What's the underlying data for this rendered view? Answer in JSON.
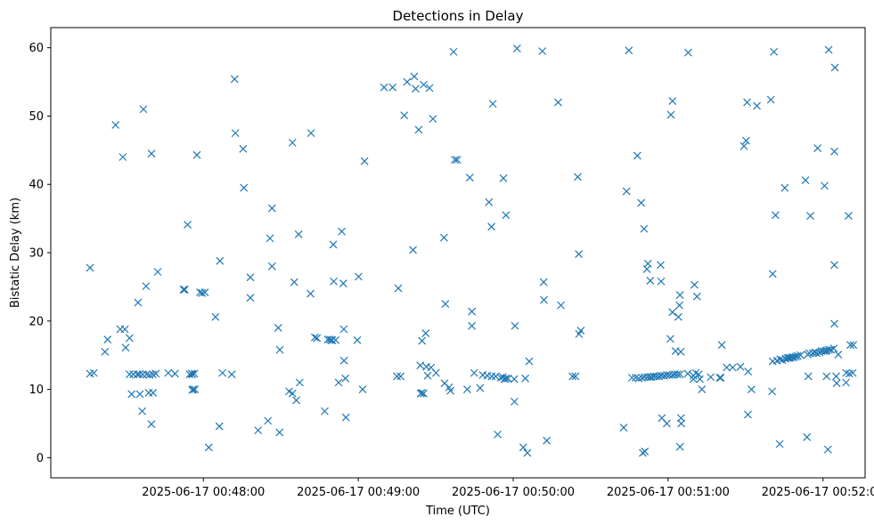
{
  "chart_data": {
    "type": "scatter",
    "title": "Detections in Delay",
    "xlabel": "Time (UTC)",
    "ylabel": "Bistatic Delay (km)",
    "marker": "x",
    "color": "#1f77b4",
    "x_tick_labels": [
      {
        "seconds": 0,
        "label": "2025-06-17 00:48:00"
      },
      {
        "seconds": 60,
        "label": "2025-06-17 00:49:00"
      },
      {
        "seconds": 120,
        "label": "2025-06-17 00:50:00"
      },
      {
        "seconds": 180,
        "label": "2025-06-17 00:51:00"
      },
      {
        "seconds": 240,
        "label": "2025-06-17 00:52:00"
      }
    ],
    "x_units": "seconds relative to 2025-06-17 00:48:00",
    "xlim": [
      -59.1,
      256.3
    ],
    "ylim": [
      -2.95,
      62.95
    ],
    "y_ticks": [
      0,
      10,
      20,
      30,
      40,
      50,
      60
    ],
    "points": [
      [
        -43.9,
        27.8
      ],
      [
        -43.9,
        12.3
      ],
      [
        -42.4,
        12.4
      ],
      [
        -38.1,
        15.5
      ],
      [
        -37.1,
        17.3
      ],
      [
        -34.0,
        48.7
      ],
      [
        -32.2,
        18.8
      ],
      [
        -31.2,
        44.0
      ],
      [
        -30.4,
        18.8
      ],
      [
        -30.1,
        16.1
      ],
      [
        -28.6,
        17.5
      ],
      [
        -28.6,
        12.2
      ],
      [
        -27.8,
        9.3
      ],
      [
        -27.1,
        12.2
      ],
      [
        -25.6,
        12.2
      ],
      [
        -25.3,
        22.7
      ],
      [
        -24.8,
        12.2
      ],
      [
        -24.6,
        9.3
      ],
      [
        -23.7,
        6.8
      ],
      [
        -23.5,
        12.2
      ],
      [
        -23.2,
        51.0
      ],
      [
        -22.2,
        25.1
      ],
      [
        -22.0,
        12.2
      ],
      [
        -21.2,
        9.5
      ],
      [
        -20.9,
        12.1
      ],
      [
        -20.1,
        44.5
      ],
      [
        -20.1,
        4.9
      ],
      [
        -19.6,
        12.2
      ],
      [
        -19.5,
        9.5
      ],
      [
        -18.4,
        12.3
      ],
      [
        -17.7,
        27.2
      ],
      [
        -13.6,
        12.4
      ],
      [
        -11.0,
        12.3
      ],
      [
        -7.7,
        24.6
      ],
      [
        -7.2,
        24.6
      ],
      [
        -6.1,
        34.1
      ],
      [
        -5.3,
        12.2
      ],
      [
        -4.5,
        12.3
      ],
      [
        -4.3,
        12.2
      ],
      [
        -4.3,
        9.9
      ],
      [
        -4.0,
        10.0
      ],
      [
        -3.5,
        12.3
      ],
      [
        -3.3,
        10.0
      ],
      [
        -2.5,
        44.3
      ],
      [
        -1.3,
        24.2
      ],
      [
        -0.5,
        24.1
      ],
      [
        0.6,
        24.2
      ],
      [
        2.1,
        1.5
      ],
      [
        4.7,
        20.6
      ],
      [
        6.2,
        4.6
      ],
      [
        6.4,
        28.8
      ],
      [
        7.4,
        12.4
      ],
      [
        11.0,
        12.2
      ],
      [
        12.1,
        55.4
      ],
      [
        12.4,
        47.5
      ],
      [
        15.4,
        45.2
      ],
      [
        15.7,
        39.5
      ],
      [
        18.2,
        26.4
      ],
      [
        18.2,
        23.4
      ],
      [
        21.2,
        4.0
      ],
      [
        25.0,
        5.4
      ],
      [
        25.8,
        32.1
      ],
      [
        26.6,
        36.5
      ],
      [
        26.6,
        28.0
      ],
      [
        29.0,
        19.0
      ],
      [
        29.5,
        3.7
      ],
      [
        29.6,
        15.8
      ],
      [
        33.2,
        9.7
      ],
      [
        34.5,
        46.1
      ],
      [
        34.5,
        9.4
      ],
      [
        35.2,
        25.7
      ],
      [
        36.0,
        8.4
      ],
      [
        36.9,
        32.7
      ],
      [
        37.3,
        11.0
      ],
      [
        41.5,
        24.0
      ],
      [
        41.7,
        47.5
      ],
      [
        43.2,
        17.6
      ],
      [
        44.0,
        17.5
      ],
      [
        47.0,
        6.8
      ],
      [
        48.2,
        17.3
      ],
      [
        49.0,
        17.3
      ],
      [
        49.6,
        17.2
      ],
      [
        49.9,
        17.2
      ],
      [
        50.3,
        31.2
      ],
      [
        50.5,
        25.8
      ],
      [
        51.2,
        17.2
      ],
      [
        52.4,
        11.0
      ],
      [
        53.6,
        33.1
      ],
      [
        54.2,
        25.5
      ],
      [
        54.4,
        18.8
      ],
      [
        54.5,
        14.2
      ],
      [
        55.0,
        11.6
      ],
      [
        55.2,
        5.9
      ],
      [
        59.6,
        17.2
      ],
      [
        60.1,
        26.5
      ],
      [
        61.7,
        10.0
      ],
      [
        62.4,
        43.4
      ],
      [
        70.0,
        54.2
      ],
      [
        73.3,
        54.2
      ],
      [
        75.0,
        11.9
      ],
      [
        75.5,
        24.8
      ],
      [
        76.4,
        11.9
      ],
      [
        77.8,
        50.1
      ],
      [
        78.9,
        55.0
      ],
      [
        81.2,
        30.4
      ],
      [
        81.7,
        55.8
      ],
      [
        82.2,
        54.0
      ],
      [
        83.4,
        48.0
      ],
      [
        84.0,
        13.5
      ],
      [
        84.2,
        9.4
      ],
      [
        84.6,
        9.5
      ],
      [
        84.7,
        17.1
      ],
      [
        85.3,
        9.4
      ],
      [
        85.3,
        54.6
      ],
      [
        86.1,
        18.2
      ],
      [
        86.4,
        13.3
      ],
      [
        86.9,
        12.0
      ],
      [
        87.6,
        54.1
      ],
      [
        88.2,
        13.2
      ],
      [
        88.9,
        49.6
      ],
      [
        90.1,
        12.4
      ],
      [
        93.2,
        32.2
      ],
      [
        93.4,
        10.9
      ],
      [
        93.7,
        22.5
      ],
      [
        95.2,
        10.3
      ],
      [
        95.7,
        9.8
      ],
      [
        96.9,
        59.4
      ],
      [
        97.4,
        43.6
      ],
      [
        98.3,
        43.6
      ],
      [
        102.2,
        10.0
      ],
      [
        103.2,
        41.0
      ],
      [
        104.0,
        19.3
      ],
      [
        104.0,
        21.4
      ],
      [
        104.9,
        12.4
      ],
      [
        107.2,
        10.2
      ],
      [
        108.2,
        12.1
      ],
      [
        110.0,
        12.0
      ],
      [
        110.6,
        37.4
      ],
      [
        111.6,
        33.8
      ],
      [
        111.7,
        11.9
      ],
      [
        112.1,
        51.8
      ],
      [
        113.2,
        11.9
      ],
      [
        114.0,
        3.4
      ],
      [
        115.2,
        11.7
      ],
      [
        116.0,
        11.8
      ],
      [
        116.2,
        40.9
      ],
      [
        116.6,
        11.5
      ],
      [
        117.2,
        11.6
      ],
      [
        117.2,
        35.5
      ],
      [
        118.0,
        11.6
      ],
      [
        120.4,
        11.5
      ],
      [
        120.5,
        8.2
      ],
      [
        120.7,
        19.3
      ],
      [
        121.5,
        59.9
      ],
      [
        123.9,
        1.5
      ],
      [
        124.7,
        11.6
      ],
      [
        125.5,
        0.7
      ],
      [
        126.2,
        14.1
      ],
      [
        131.3,
        59.5
      ],
      [
        131.8,
        25.7
      ],
      [
        131.9,
        23.1
      ],
      [
        133.0,
        2.5
      ],
      [
        137.4,
        52.0
      ],
      [
        138.5,
        22.3
      ],
      [
        143.0,
        11.9
      ],
      [
        144.1,
        11.9
      ],
      [
        145.0,
        41.1
      ],
      [
        145.4,
        29.8
      ],
      [
        145.5,
        18.1
      ],
      [
        146.2,
        18.6
      ],
      [
        162.8,
        4.4
      ],
      [
        163.9,
        39.0
      ],
      [
        164.8,
        59.6
      ],
      [
        166.0,
        11.7
      ],
      [
        167.4,
        11.7
      ],
      [
        168.1,
        44.2
      ],
      [
        168.6,
        11.6
      ],
      [
        169.6,
        37.3
      ],
      [
        169.9,
        11.7
      ],
      [
        170.2,
        0.7
      ],
      [
        170.7,
        33.5
      ],
      [
        170.9,
        11.8
      ],
      [
        171.0,
        0.9
      ],
      [
        171.8,
        27.6
      ],
      [
        172.0,
        11.8
      ],
      [
        172.2,
        28.4
      ],
      [
        172.9,
        11.8
      ],
      [
        173.1,
        25.9
      ],
      [
        173.6,
        11.8
      ],
      [
        174.5,
        11.9
      ],
      [
        175.5,
        11.9
      ],
      [
        176.5,
        11.9
      ],
      [
        177.1,
        28.2
      ],
      [
        177.3,
        25.8
      ],
      [
        177.4,
        12.0
      ],
      [
        177.6,
        5.8
      ],
      [
        178.5,
        12.0
      ],
      [
        179.5,
        12.1
      ],
      [
        179.5,
        5.0
      ],
      [
        180.5,
        12.1
      ],
      [
        180.9,
        17.4
      ],
      [
        181.1,
        50.2
      ],
      [
        181.7,
        52.2
      ],
      [
        181.7,
        12.1
      ],
      [
        181.7,
        21.3
      ],
      [
        182.6,
        12.2
      ],
      [
        182.9,
        15.6
      ],
      [
        183.6,
        12.2
      ],
      [
        184.0,
        20.6
      ],
      [
        184.4,
        22.3
      ],
      [
        184.6,
        1.6
      ],
      [
        184.6,
        23.8
      ],
      [
        184.6,
        12.2
      ],
      [
        184.9,
        15.5
      ],
      [
        185.0,
        5.8
      ],
      [
        185.1,
        5.0
      ],
      [
        187.6,
        12.3
      ],
      [
        187.8,
        59.3
      ],
      [
        189.8,
        12.0
      ],
      [
        189.8,
        11.5
      ],
      [
        190.2,
        25.3
      ],
      [
        190.7,
        12.4
      ],
      [
        191.2,
        23.6
      ],
      [
        191.8,
        12.2
      ],
      [
        192.3,
        11.5
      ],
      [
        193.1,
        10.0
      ],
      [
        196.5,
        11.8
      ],
      [
        200.0,
        11.7
      ],
      [
        200.4,
        11.7
      ],
      [
        200.8,
        16.5
      ],
      [
        202.7,
        13.2
      ],
      [
        205.0,
        13.2
      ],
      [
        208.0,
        13.3
      ],
      [
        209.4,
        45.6
      ],
      [
        210.2,
        46.4
      ],
      [
        210.6,
        52.0
      ],
      [
        210.9,
        6.3
      ],
      [
        211.0,
        12.6
      ],
      [
        212.3,
        10.0
      ],
      [
        214.4,
        51.5
      ],
      [
        219.8,
        52.4
      ],
      [
        220.3,
        9.7
      ],
      [
        220.5,
        26.9
      ],
      [
        220.5,
        14.1
      ],
      [
        221.0,
        59.4
      ],
      [
        221.6,
        35.5
      ],
      [
        222.2,
        14.2
      ],
      [
        223.2,
        2.0
      ],
      [
        223.4,
        14.4
      ],
      [
        224.2,
        14.3
      ],
      [
        225.2,
        39.5
      ],
      [
        225.5,
        14.5
      ],
      [
        226.3,
        14.6
      ],
      [
        226.8,
        14.6
      ],
      [
        227.3,
        14.6
      ],
      [
        228.0,
        14.7
      ],
      [
        228.7,
        14.7
      ],
      [
        229.5,
        14.8
      ],
      [
        230.2,
        14.9
      ],
      [
        231.3,
        15.0
      ],
      [
        233.2,
        40.6
      ],
      [
        233.8,
        3.0
      ],
      [
        234.1,
        15.1
      ],
      [
        234.3,
        11.9
      ],
      [
        234.7,
        15.3
      ],
      [
        235.1,
        35.4
      ],
      [
        236.0,
        15.3
      ],
      [
        236.9,
        15.4
      ],
      [
        237.6,
        15.3
      ],
      [
        237.9,
        45.3
      ],
      [
        238.7,
        15.4
      ],
      [
        239.4,
        15.6
      ],
      [
        240.2,
        15.6
      ],
      [
        240.6,
        39.8
      ],
      [
        241.0,
        15.6
      ],
      [
        241.4,
        11.9
      ],
      [
        241.5,
        15.7
      ],
      [
        241.9,
        1.2
      ],
      [
        242.2,
        59.7
      ],
      [
        242.3,
        15.8
      ],
      [
        243.1,
        15.8
      ],
      [
        244.2,
        16.0
      ],
      [
        244.4,
        19.6
      ],
      [
        244.4,
        28.2
      ],
      [
        244.4,
        44.8
      ],
      [
        244.6,
        57.1
      ],
      [
        245.1,
        11.9
      ],
      [
        245.3,
        10.9
      ],
      [
        245.9,
        15.1
      ],
      [
        248.9,
        11.0
      ],
      [
        249.0,
        12.4
      ],
      [
        249.9,
        35.4
      ],
      [
        250.2,
        12.3
      ],
      [
        250.6,
        16.5
      ],
      [
        251.5,
        12.4
      ],
      [
        251.7,
        16.5
      ]
    ]
  }
}
